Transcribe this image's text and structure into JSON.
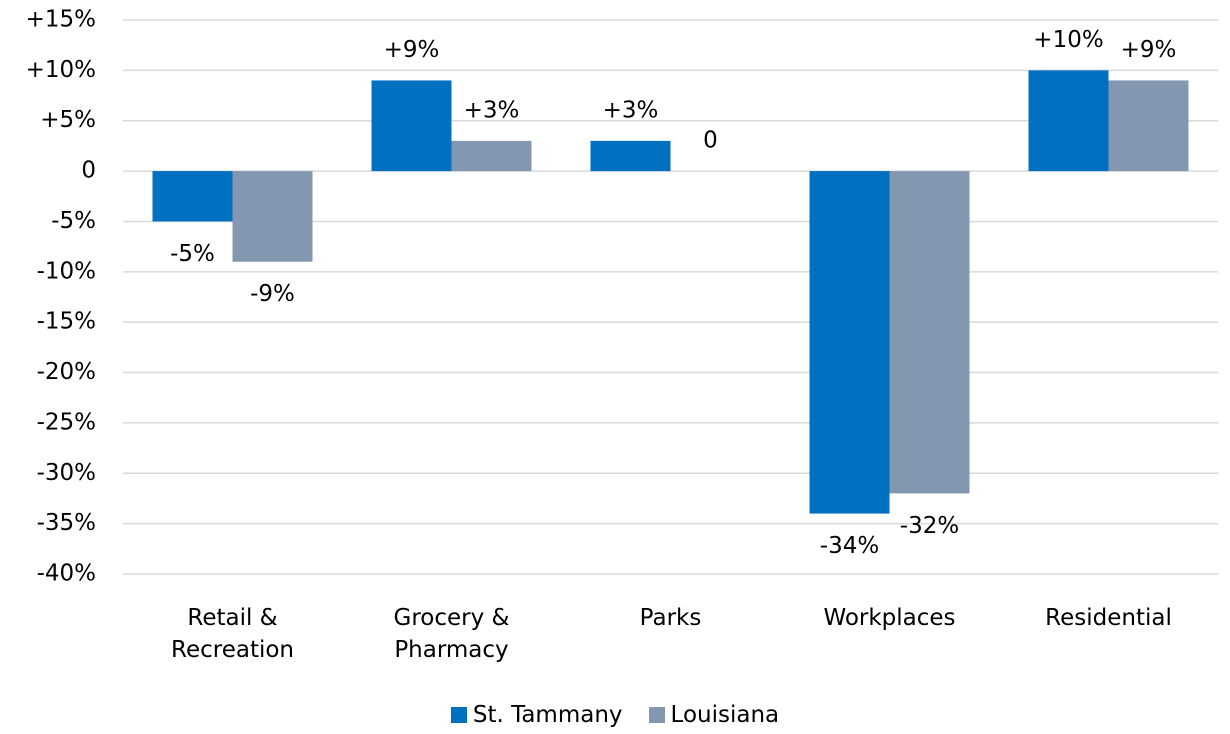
{
  "chart_data": {
    "type": "bar",
    "categories": [
      "Retail & Recreation",
      "Grocery & Pharmacy",
      "Parks",
      "Workplaces",
      "Residential"
    ],
    "series": [
      {
        "name": "St. Tammany",
        "color": "#0070c0",
        "values": [
          -5,
          9,
          3,
          -34,
          10
        ],
        "value_labels": [
          "-5%",
          "+9%",
          "+3%",
          "-34%",
          "+10%"
        ]
      },
      {
        "name": "Louisiana",
        "color": "#8497b0",
        "values": [
          -9,
          3,
          0,
          -32,
          9
        ],
        "value_labels": [
          "-9%",
          "+3%",
          "0",
          "-32%",
          "+9%"
        ]
      }
    ],
    "ylim": [
      -40,
      15
    ],
    "yticks": [
      {
        "value": 15,
        "label": "+15%"
      },
      {
        "value": 10,
        "label": "+10%"
      },
      {
        "value": 5,
        "label": "+5%"
      },
      0,
      {
        "value": -5,
        "label": "-5%"
      },
      {
        "value": -10,
        "label": "-10%"
      },
      {
        "value": -15,
        "label": "-15%"
      },
      {
        "value": -20,
        "label": "-20%"
      },
      {
        "value": -25,
        "label": "-25%"
      },
      {
        "value": -30,
        "label": "-30%"
      },
      {
        "value": -35,
        "label": "-35%"
      },
      {
        "value": -40,
        "label": "-40%"
      }
    ],
    "grid": true,
    "legend": "bottom"
  }
}
